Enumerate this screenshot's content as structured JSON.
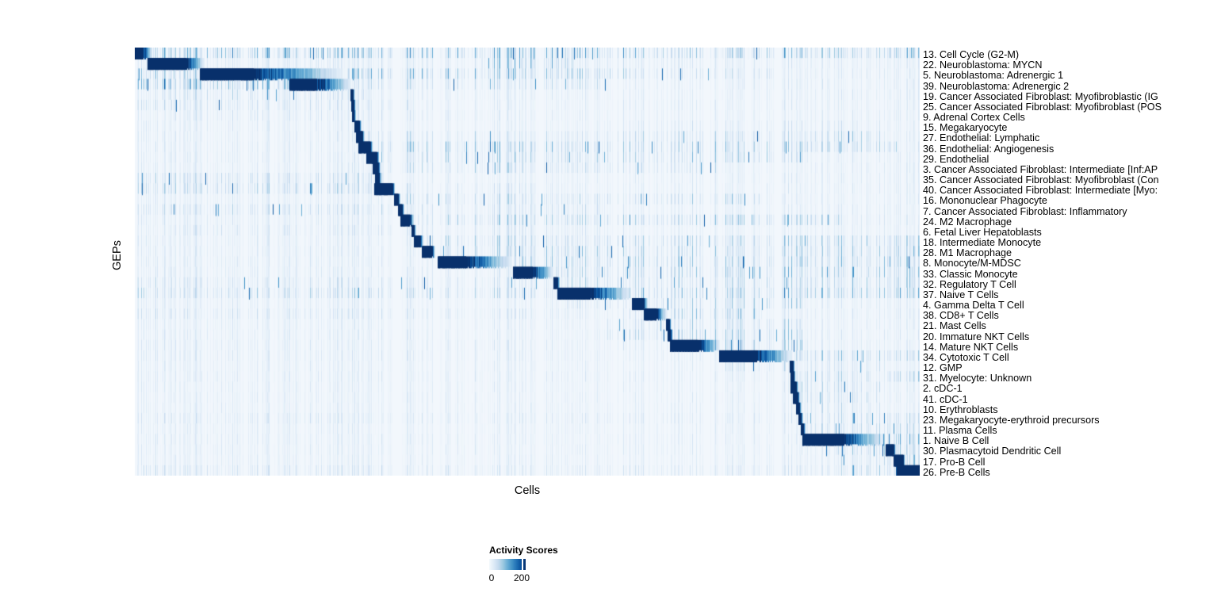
{
  "figure": {
    "x_axis_label": "Cells",
    "y_axis_label": "GEPs",
    "legend": {
      "title": "Activity Scores",
      "tick_labels": [
        "0",
        "200"
      ],
      "min": 0,
      "max": 200
    }
  },
  "colors": {
    "colormap_name": "Blues",
    "colormap_stops": [
      "#f2f7fc",
      "#deebf7",
      "#c6dbef",
      "#9ecae1",
      "#6baed6",
      "#4292c6",
      "#2171b5",
      "#08519c",
      "#08306b"
    ],
    "page_background": "#ffffff",
    "text": "#000000"
  },
  "chart_data": {
    "type": "heatmap",
    "title": "",
    "xlabel": "Cells",
    "ylabel": "GEPs",
    "legend_title": "Activity Scores",
    "scale": {
      "min": 0,
      "max": 200,
      "tick_values": [
        0,
        200
      ]
    },
    "layout": {
      "grid": false,
      "legend_position": "bottom-left",
      "row_count": 41
    },
    "rows": [
      {
        "label": "13. Cell Cycle (G2-M)",
        "block": [
          0.0,
          0.011,
          0.022
        ],
        "noise": 0.2,
        "regions": [
          [
            0.02,
            1.0,
            0.5
          ]
        ]
      },
      {
        "label": "22. Neuroblastoma: MYCN",
        "block": [
          0.016,
          0.066,
          0.088
        ],
        "noise": 0.16,
        "regions": [
          [
            0.09,
            0.44,
            0.18
          ],
          [
            0.44,
            0.56,
            0.45
          ],
          [
            0.56,
            0.72,
            0.2
          ]
        ]
      },
      {
        "label": "5. Neuroblastoma: Adrenergic 1",
        "block": [
          0.083,
          0.152,
          0.263
        ],
        "noise": 0.15,
        "regions": [
          [
            0.0,
            0.08,
            0.35
          ],
          [
            0.27,
            0.63,
            0.5
          ],
          [
            0.63,
            0.82,
            0.25
          ],
          [
            0.82,
            1.0,
            0.14
          ]
        ]
      },
      {
        "label": "39. Neuroblastoma: Adrenergic 2",
        "block": [
          0.197,
          0.232,
          0.275
        ],
        "noise": 0.15,
        "regions": [
          [
            0.0,
            0.2,
            0.55
          ],
          [
            0.28,
            0.6,
            0.28
          ],
          [
            0.6,
            1.0,
            0.14
          ]
        ]
      },
      {
        "label": "19. Cancer Associated Fibroblast: Myofibroblastic (IG",
        "block": [
          0.2747,
          0.2778,
          0.28
        ],
        "noise": 0.14,
        "regions": [
          [
            0.03,
            0.3,
            0.25
          ],
          [
            0.3,
            0.55,
            0.15
          ]
        ]
      },
      {
        "label": "25. Cancer Associated Fibroblast: Myofibroblast (POS",
        "block": [
          0.2758,
          0.2788,
          0.281
        ],
        "noise": 0.14,
        "regions": [
          [
            0.0,
            0.35,
            0.22
          ]
        ]
      },
      {
        "label": "9. Adrenal Cortex Cells",
        "block": [
          0.2768,
          0.2793,
          0.2815
        ],
        "noise": 0.13,
        "regions": [
          [
            0.05,
            0.45,
            0.18
          ]
        ]
      },
      {
        "label": "15. Megakaryocyte",
        "block": [
          0.2798,
          0.2859,
          0.2885
        ],
        "noise": 0.13,
        "regions": [
          [
            0.0,
            0.3,
            0.15
          ],
          [
            0.6,
            0.95,
            0.18
          ]
        ]
      },
      {
        "label": "27. Endothelial: Lymphatic",
        "block": [
          0.2818,
          0.2899,
          0.2925
        ],
        "noise": 0.14,
        "regions": [
          [
            0.29,
            0.6,
            0.25
          ],
          [
            0.6,
            0.95,
            0.3
          ]
        ]
      },
      {
        "label": "36. Endothelial: Angiogenesis",
        "block": [
          0.2848,
          0.3,
          0.303
        ],
        "noise": 0.14,
        "regions": [
          [
            0.3,
            0.97,
            0.4
          ]
        ]
      },
      {
        "label": "29. Endothelial",
        "block": [
          0.2949,
          0.3081,
          0.311
        ],
        "noise": 0.14,
        "regions": [
          [
            0.3,
            0.85,
            0.35
          ]
        ]
      },
      {
        "label": "3. Cancer Associated Fibroblast: Intermediate [Inf:AP",
        "block": [
          0.303,
          0.3101,
          0.3125
        ],
        "noise": 0.14,
        "regions": [
          [
            0.3,
            0.75,
            0.3
          ]
        ]
      },
      {
        "label": "35. Cancer Associated Fibroblast: Myofibroblast (Con",
        "block": [
          0.3061,
          0.3111,
          0.3135
        ],
        "noise": 0.14,
        "regions": [
          [
            0.0,
            0.33,
            0.25
          ]
        ]
      },
      {
        "label": "40. Cancer Associated Fibroblast: Intermediate [Myo:",
        "block": [
          0.3051,
          0.3283,
          0.331
        ],
        "noise": 0.14,
        "regions": [
          [
            0.0,
            0.33,
            0.3
          ],
          [
            0.34,
            0.55,
            0.2
          ]
        ]
      },
      {
        "label": "16. Mononuclear Phagocyte",
        "block": [
          0.3303,
          0.3354,
          0.338
        ],
        "noise": 0.14,
        "regions": [
          [
            0.34,
            0.8,
            0.3
          ]
        ]
      },
      {
        "label": "7. Cancer Associated Fibroblast: Inflammatory",
        "block": [
          0.3354,
          0.3404,
          0.343
        ],
        "noise": 0.14,
        "regions": [
          [
            0.0,
            0.34,
            0.25
          ],
          [
            0.35,
            0.6,
            0.25
          ]
        ]
      },
      {
        "label": "24. M2 Macrophage",
        "block": [
          0.3384,
          0.3505,
          0.355
        ],
        "noise": 0.15,
        "regions": [
          [
            0.35,
            0.9,
            0.38
          ]
        ]
      },
      {
        "label": "6. Fetal Liver Hepatoblasts",
        "block": [
          0.3525,
          0.3556,
          0.358
        ],
        "noise": 0.13,
        "regions": [
          [
            0.05,
            0.35,
            0.2
          ],
          [
            0.36,
            0.6,
            0.2
          ]
        ]
      },
      {
        "label": "18. Intermediate Monocyte",
        "block": [
          0.3556,
          0.3636,
          0.367
        ],
        "noise": 0.15,
        "regions": [
          [
            0.36,
            1.0,
            0.35
          ]
        ]
      },
      {
        "label": "28. M1 Macrophage",
        "block": [
          0.3657,
          0.3788,
          0.382
        ],
        "noise": 0.15,
        "regions": [
          [
            0.38,
            1.0,
            0.38
          ]
        ]
      },
      {
        "label": "8. Monocyte/M-MDSC",
        "block": [
          0.3859,
          0.422,
          0.48
        ],
        "noise": 0.15,
        "regions": [
          [
            0.48,
            1.0,
            0.4
          ]
        ]
      },
      {
        "label": "33. Classic Monocyte",
        "block": [
          0.4818,
          0.5071,
          0.533
        ],
        "noise": 0.15,
        "regions": [
          [
            0.53,
            1.0,
            0.4
          ]
        ]
      },
      {
        "label": "32. Regulatory T Cell",
        "block": [
          0.5333,
          0.5384,
          0.541
        ],
        "noise": 0.14,
        "regions": [
          [
            0.0,
            0.53,
            0.22
          ],
          [
            0.54,
            1.0,
            0.35
          ]
        ]
      },
      {
        "label": "37. Naive T Cells",
        "block": [
          0.5384,
          0.5808,
          0.632
        ],
        "noise": 0.16,
        "regions": [
          [
            0.0,
            0.54,
            0.3
          ],
          [
            0.63,
            1.0,
            0.45
          ]
        ]
      },
      {
        "label": "4. Gamma Delta T Cell",
        "block": [
          0.6333,
          0.6485,
          0.653
        ],
        "noise": 0.14,
        "regions": [
          [
            0.55,
            0.63,
            0.3
          ],
          [
            0.65,
            0.85,
            0.35
          ]
        ]
      },
      {
        "label": "38. CD8+ T Cells",
        "block": [
          0.6485,
          0.6646,
          0.677
        ],
        "noise": 0.14,
        "regions": [
          [
            0.0,
            0.64,
            0.2
          ],
          [
            0.68,
            0.8,
            0.45
          ]
        ]
      },
      {
        "label": "21. Mast Cells",
        "block": [
          0.6768,
          0.6808,
          0.683
        ],
        "noise": 0.13,
        "regions": [
          [
            0.6,
            0.7,
            0.25
          ],
          [
            0.7,
            0.85,
            0.3
          ]
        ]
      },
      {
        "label": "20. Immature NKT Cells",
        "block": [
          0.6788,
          0.6828,
          0.685
        ],
        "noise": 0.14,
        "regions": [
          [
            0.6,
            0.85,
            0.35
          ]
        ]
      },
      {
        "label": "14. Mature NKT Cells",
        "block": [
          0.6818,
          0.7172,
          0.745
        ],
        "noise": 0.15,
        "regions": [
          [
            0.68,
            0.74,
            0.45
          ],
          [
            0.75,
            0.85,
            0.4
          ]
        ]
      },
      {
        "label": "34. Cytotoxic T Cell",
        "block": [
          0.7444,
          0.7929,
          0.836
        ],
        "noise": 0.15,
        "regions": [
          [
            0.84,
            1.0,
            0.35
          ]
        ]
      },
      {
        "label": "12. GMP",
        "block": [
          0.8343,
          0.8384,
          0.8405
        ],
        "noise": 0.13,
        "regions": [
          [
            0.75,
            0.83,
            0.25
          ],
          [
            0.85,
            0.95,
            0.25
          ]
        ]
      },
      {
        "label": "31. Myelocyte: Unknown",
        "block": [
          0.8354,
          0.8394,
          0.8415
        ],
        "noise": 0.13,
        "regions": [
          [
            0.0,
            0.83,
            0.15
          ],
          [
            0.84,
            1.0,
            0.3
          ]
        ]
      },
      {
        "label": "2. cDC-1",
        "block": [
          0.8354,
          0.8424,
          0.845
        ],
        "noise": 0.13,
        "regions": [
          [
            0.845,
            0.95,
            0.3
          ]
        ]
      },
      {
        "label": "41. cDC-1",
        "block": [
          0.8384,
          0.8444,
          0.847
        ],
        "noise": 0.13,
        "regions": [
          [
            0.845,
            0.95,
            0.3
          ]
        ]
      },
      {
        "label": "10. Erythroblasts",
        "block": [
          0.8424,
          0.8465,
          0.849
        ],
        "noise": 0.13,
        "regions": [
          [
            0.85,
            0.95,
            0.25
          ]
        ]
      },
      {
        "label": "23. Megakaryocyte-erythroid precursors",
        "block": [
          0.8455,
          0.8485,
          0.851
        ],
        "noise": 0.13,
        "regions": [
          [
            0.0,
            0.85,
            0.18
          ],
          [
            0.85,
            1.0,
            0.25
          ]
        ]
      },
      {
        "label": "11. Plasma Cells",
        "block": [
          0.8485,
          0.8515,
          0.854
        ],
        "noise": 0.13,
        "regions": [
          [
            0.85,
            1.0,
            0.3
          ]
        ]
      },
      {
        "label": "1. Naive B Cell",
        "block": [
          0.8505,
          0.904,
          0.953
        ],
        "noise": 0.14,
        "regions": [
          [
            0.85,
            1.0,
            0.45
          ]
        ]
      },
      {
        "label": "30. Plasmacytoid Dendritic Cell",
        "block": [
          0.9566,
          0.9667,
          0.969
        ],
        "noise": 0.13,
        "regions": [
          [
            0.88,
            1.0,
            0.35
          ]
        ]
      },
      {
        "label": "17. Pro-B Cell",
        "block": [
          0.9667,
          0.9788,
          0.981
        ],
        "noise": 0.13,
        "regions": [
          [
            0.9,
            1.0,
            0.3
          ]
        ]
      },
      {
        "label": "26. Pre-B Cells",
        "block": [
          0.9707,
          1.0,
          1.0
        ],
        "noise": 0.14,
        "regions": [
          [
            0.0,
            0.9,
            0.2
          ],
          [
            0.9,
            1.0,
            0.35
          ]
        ]
      }
    ]
  }
}
